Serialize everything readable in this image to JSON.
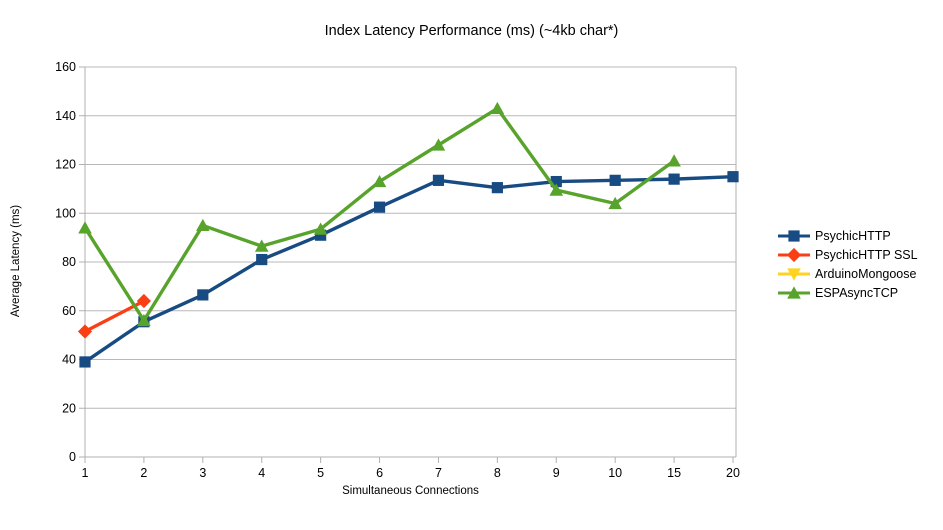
{
  "window": {
    "title": "Index Latency Performance (ms) (~4kb char*)"
  },
  "chart_data": {
    "type": "line",
    "title": "Index Latency Performance (ms) (~4kb char*)",
    "xlabel": "Simultaneous Connections",
    "ylabel": "Average Latency (ms)",
    "categories": [
      "1",
      "2",
      "3",
      "4",
      "5",
      "6",
      "7",
      "8",
      "9",
      "10",
      "15",
      "20"
    ],
    "ylim": [
      0,
      160
    ],
    "ytick_step": 20,
    "grid": "horizontal",
    "legend_position": "right",
    "axis_color": "#b0b0b0",
    "gridline_color": "#b8b8b8",
    "series": [
      {
        "name": "PsychicHTTP",
        "color": "#174b82",
        "marker": "square",
        "values": [
          39,
          55.5,
          66.5,
          81,
          91,
          102.5,
          113.5,
          110.5,
          113,
          113.5,
          114,
          115
        ]
      },
      {
        "name": "PsychicHTTP SSL",
        "color": "#fb3f15",
        "marker": "diamond",
        "values": [
          51.5,
          64,
          null,
          null,
          null,
          null,
          null,
          null,
          null,
          null,
          null,
          null
        ]
      },
      {
        "name": "ArduinoMongoose",
        "color": "#ffd320",
        "marker": "triangle-down",
        "values": [
          null,
          null,
          null,
          null,
          null,
          null,
          null,
          null,
          null,
          null,
          null,
          null
        ]
      },
      {
        "name": "ESPAsyncTCP",
        "color": "#58a32b",
        "marker": "triangle-up",
        "values": [
          94,
          56,
          95,
          86.5,
          93.5,
          113,
          128,
          143,
          109.5,
          104,
          121.5,
          null
        ]
      }
    ]
  }
}
